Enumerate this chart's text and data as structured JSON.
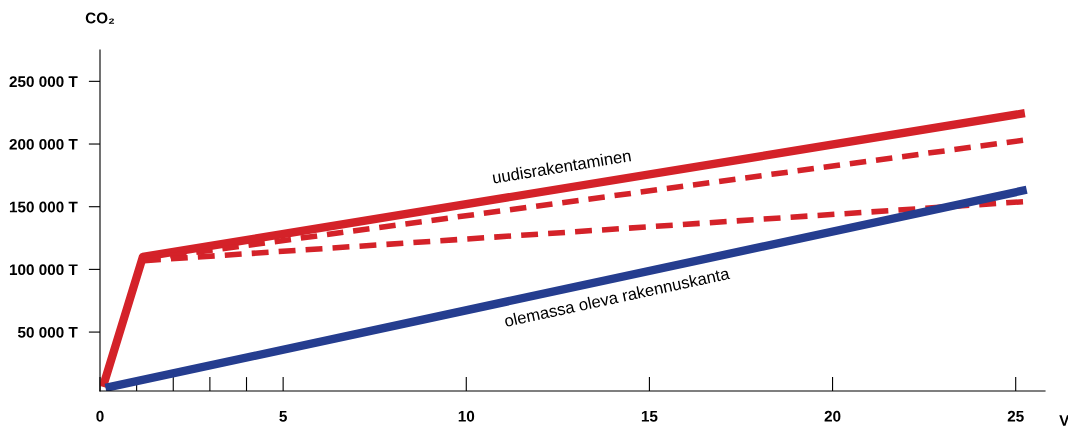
{
  "chart_data": {
    "type": "line",
    "xlabel": "V",
    "ylabel": "CO₂",
    "series": [
      {
        "color": "#d42229",
        "line_style": "solid",
        "x": [
          0.08,
          1.17,
          25.25
        ],
        "values": [
          6300,
          110000,
          224600
        ]
      },
      {
        "color": "#d42229",
        "line_style": "dashed",
        "x": [
          1.2,
          25.2
        ],
        "values": [
          108000,
          203000
        ]
      },
      {
        "color": "#d42229",
        "line_style": "dashed",
        "x": [
          1.2,
          25.2
        ],
        "values": [
          107000,
          154000
        ]
      },
      {
        "color": "#253d8f",
        "line_style": "solid",
        "x": [
          0.15,
          25.3
        ],
        "values": [
          5500,
          163500
        ]
      }
    ],
    "annotations": [
      {
        "text": "uudisrakentaminen",
        "x": 12.7,
        "y": 164900
      },
      {
        "text": "olemassa oleva rakennuskanta",
        "x": 14.0,
        "y": 92500
      }
    ],
    "xlim": [
      0,
      25.8
    ],
    "ylim": [
      3000,
      275000
    ],
    "xticks": [
      0,
      {
        "value": 1,
        "label": null
      },
      {
        "value": 2,
        "label": null
      },
      {
        "value": 3,
        "label": null
      },
      {
        "value": 4,
        "label": null
      },
      5,
      10,
      15,
      20,
      25
    ],
    "yticks": [
      {
        "value": 50000,
        "label": "50 000 T"
      },
      {
        "value": 100000,
        "label": "100 000 T"
      },
      {
        "value": 150000,
        "label": "150 000 T"
      },
      {
        "value": 200000,
        "label": "200 000 T"
      },
      {
        "value": 250000,
        "label": "250 000 T"
      }
    ],
    "grid": false,
    "legend": false,
    "marker": "none"
  }
}
